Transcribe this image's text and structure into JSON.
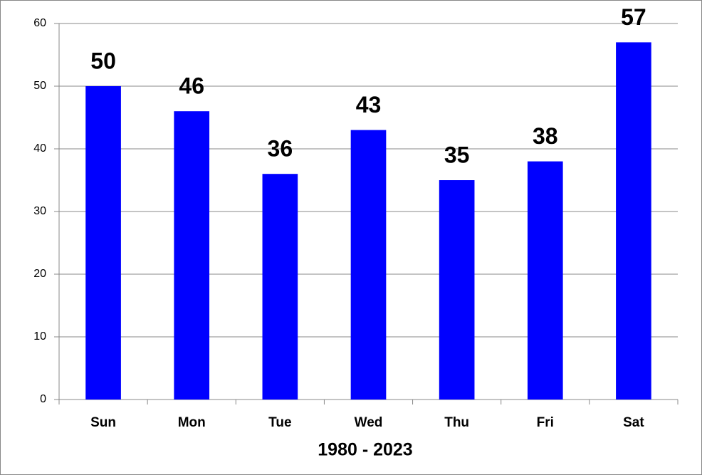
{
  "chart_data": {
    "type": "bar",
    "x_label": "1980 - 2023",
    "categories": [
      "Sun",
      "Mon",
      "Tue",
      "Wed",
      "Thu",
      "Fri",
      "Sat"
    ],
    "values": [
      50,
      46,
      36,
      43,
      35,
      38,
      57
    ],
    "color": "#0000ff",
    "ylim": [
      0,
      60
    ],
    "yticks": [
      0,
      10,
      20,
      30,
      40,
      50,
      60
    ],
    "grid": true
  }
}
